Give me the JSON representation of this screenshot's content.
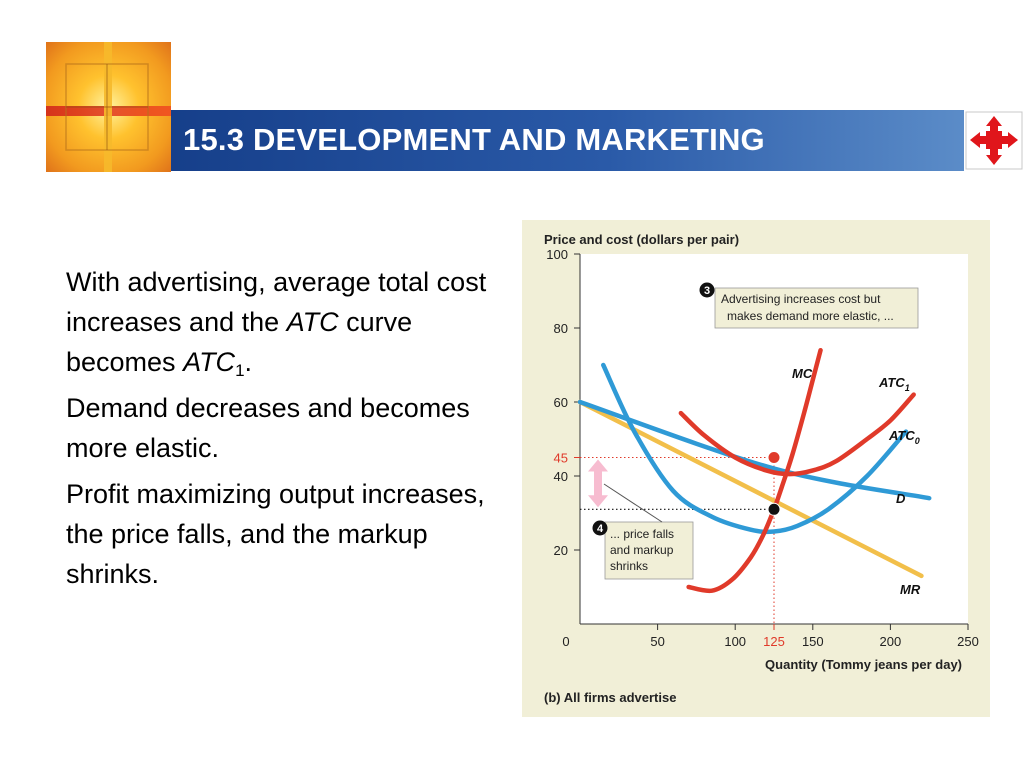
{
  "slide": {
    "title": "15.3 DEVELOPMENT AND MARKETING",
    "paragraph1_a": "With advertising, average total cost increases and the ",
    "paragraph1_atc": "ATC",
    "paragraph1_b": " curve becomes ",
    "paragraph1_atc1": "ATC",
    "paragraph1_sub": "1",
    "paragraph1_end": ".",
    "paragraph2": "Demand decreases and becomes more elastic.",
    "paragraph3": "Profit maximizing output increases, the price falls, and the markup shrinks."
  },
  "icons": {
    "logo": "cross-window-logo-icon",
    "nav": "navigation-arrows-icon"
  },
  "chart_data": {
    "type": "line",
    "ylabel": "Price and cost (dollars per pair)",
    "xlabel": "Quantity (Tommy jeans per day)",
    "caption": "(b) All firms advertise",
    "xlim": [
      0,
      250
    ],
    "ylim": [
      0,
      100
    ],
    "x_ticks": [
      "0",
      "50",
      "100",
      "125",
      "150",
      "200",
      "250"
    ],
    "y_ticks": [
      "20",
      "40",
      "45",
      "60",
      "80",
      "100"
    ],
    "grid": false,
    "series": [
      {
        "name": "MC",
        "color": "#e03a2a",
        "points": [
          [
            70,
            10
          ],
          [
            85,
            9
          ],
          [
            98,
            12
          ],
          [
            110,
            18
          ],
          [
            118,
            24
          ],
          [
            125,
            31
          ],
          [
            130,
            37
          ],
          [
            137,
            46
          ],
          [
            145,
            58
          ],
          [
            150,
            66
          ],
          [
            155,
            74
          ]
        ]
      },
      {
        "name": "ATC1",
        "color": "#e03a2a",
        "points": [
          [
            65,
            57
          ],
          [
            80,
            51
          ],
          [
            100,
            45
          ],
          [
            120,
            41.5
          ],
          [
            135,
            40.5
          ],
          [
            150,
            41.5
          ],
          [
            165,
            44
          ],
          [
            185,
            50
          ],
          [
            200,
            55
          ],
          [
            215,
            62
          ]
        ]
      },
      {
        "name": "ATC0",
        "color": "#2f9ad6",
        "points": [
          [
            15,
            70
          ],
          [
            35,
            52
          ],
          [
            60,
            36
          ],
          [
            85,
            29
          ],
          [
            110,
            25.5
          ],
          [
            125,
            25
          ],
          [
            140,
            26.5
          ],
          [
            160,
            31
          ],
          [
            185,
            40
          ],
          [
            210,
            52
          ]
        ]
      },
      {
        "name": "D",
        "color": "#2f9ad6",
        "points": [
          [
            0,
            60
          ],
          [
            125,
            42
          ],
          [
            225,
            34
          ]
        ]
      },
      {
        "name": "MR",
        "color": "#f2bf4a",
        "points": [
          [
            0,
            60
          ],
          [
            220,
            13
          ]
        ]
      }
    ],
    "points": [
      {
        "label": "price-point",
        "x": 125,
        "y": 45,
        "color": "#e03a2a"
      },
      {
        "label": "atc-point",
        "x": 125,
        "y": 31,
        "color": "#111111"
      }
    ],
    "annotations": [
      {
        "number": "3",
        "text": "Advertising increases cost but makes demand more elastic, ..."
      },
      {
        "number": "4",
        "text": "... price falls and markup shrinks"
      }
    ],
    "curve_labels": {
      "MC": "MC",
      "ATC": "ATC",
      "ATC1_sub": "1",
      "ATC0_sub": "0",
      "D": "D",
      "MR": "MR"
    },
    "annotation3_line1": "Advertising increases cost but",
    "annotation3_line2": "makes demand more elastic, ...",
    "annotation4_line1": "... price falls",
    "annotation4_line2": "and markup",
    "annotation4_line3": "shrinks",
    "colors": {
      "accent": "#e03a2a",
      "blue": "#2f9ad6",
      "yellow": "#f2bf4a",
      "panel": "#f1efd7"
    }
  }
}
